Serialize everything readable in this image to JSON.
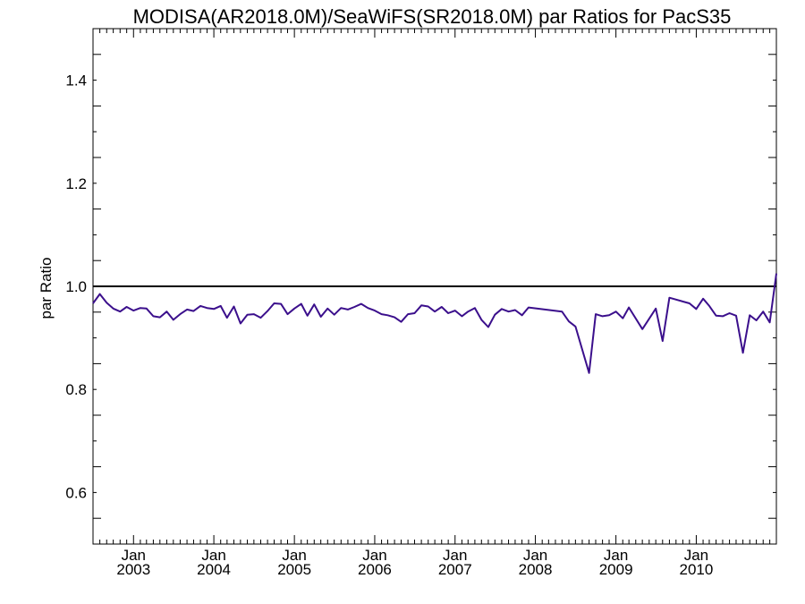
{
  "chart_data": {
    "type": "line",
    "title": "MODISA(AR2018.0M)/SeaWiFS(SR2018.0M)  par Ratios for PacS35",
    "xlabel": "",
    "ylabel": "par Ratio",
    "ylim": [
      0.5,
      1.5
    ],
    "xlim": [
      "2002-07-01",
      "2010-12-31"
    ],
    "grid": false,
    "legend": "none",
    "y_ticks": [
      {
        "value": 0.6,
        "label": "0.6"
      },
      {
        "value": 0.8,
        "label": "0.8"
      },
      {
        "value": 1.0,
        "label": "1.0"
      },
      {
        "value": 1.2,
        "label": "1.2"
      },
      {
        "value": 1.4,
        "label": "1.4"
      }
    ],
    "x_ticks": [
      {
        "date": "2003-01-01",
        "month": "Jan",
        "year": "2003"
      },
      {
        "date": "2004-01-01",
        "month": "Jan",
        "year": "2004"
      },
      {
        "date": "2005-01-01",
        "month": "Jan",
        "year": "2005"
      },
      {
        "date": "2006-01-01",
        "month": "Jan",
        "year": "2006"
      },
      {
        "date": "2007-01-01",
        "month": "Jan",
        "year": "2007"
      },
      {
        "date": "2008-01-01",
        "month": "Jan",
        "year": "2008"
      },
      {
        "date": "2009-01-01",
        "month": "Jan",
        "year": "2009"
      },
      {
        "date": "2010-01-01",
        "month": "Jan",
        "year": "2010"
      }
    ],
    "reference_line": {
      "y": 1.0,
      "color": "#000000"
    },
    "series": [
      {
        "color": "#3b0f8c",
        "points": [
          [
            "2002-07-01",
            0.967
          ],
          [
            "2002-08-01",
            0.985
          ],
          [
            "2002-09-01",
            0.968
          ],
          [
            "2002-10-01",
            0.957
          ],
          [
            "2002-11-01",
            0.951
          ],
          [
            "2002-12-01",
            0.96
          ],
          [
            "2003-01-01",
            0.953
          ],
          [
            "2003-02-01",
            0.958
          ],
          [
            "2003-03-01",
            0.957
          ],
          [
            "2003-04-01",
            0.942
          ],
          [
            "2003-05-01",
            0.94
          ],
          [
            "2003-06-01",
            0.951
          ],
          [
            "2003-07-01",
            0.935
          ],
          [
            "2003-08-01",
            0.946
          ],
          [
            "2003-09-01",
            0.955
          ],
          [
            "2003-10-01",
            0.952
          ],
          [
            "2003-11-01",
            0.962
          ],
          [
            "2003-12-01",
            0.958
          ],
          [
            "2004-01-01",
            0.956
          ],
          [
            "2004-02-01",
            0.962
          ],
          [
            "2004-03-01",
            0.939
          ],
          [
            "2004-04-01",
            0.961
          ],
          [
            "2004-05-01",
            0.928
          ],
          [
            "2004-06-01",
            0.945
          ],
          [
            "2004-07-01",
            0.946
          ],
          [
            "2004-08-01",
            0.939
          ],
          [
            "2004-09-01",
            0.952
          ],
          [
            "2004-10-01",
            0.967
          ],
          [
            "2004-11-01",
            0.966
          ],
          [
            "2004-12-01",
            0.946
          ],
          [
            "2005-01-01",
            0.957
          ],
          [
            "2005-02-01",
            0.966
          ],
          [
            "2005-03-01",
            0.943
          ],
          [
            "2005-04-01",
            0.965
          ],
          [
            "2005-05-01",
            0.941
          ],
          [
            "2005-06-01",
            0.957
          ],
          [
            "2005-07-01",
            0.945
          ],
          [
            "2005-08-01",
            0.958
          ],
          [
            "2005-09-01",
            0.955
          ],
          [
            "2005-10-01",
            0.96
          ],
          [
            "2005-11-01",
            0.966
          ],
          [
            "2005-12-01",
            0.958
          ],
          [
            "2006-01-01",
            0.953
          ],
          [
            "2006-02-01",
            0.946
          ],
          [
            "2006-03-01",
            0.944
          ],
          [
            "2006-04-01",
            0.94
          ],
          [
            "2006-05-01",
            0.931
          ],
          [
            "2006-06-01",
            0.946
          ],
          [
            "2006-07-01",
            0.948
          ],
          [
            "2006-08-01",
            0.963
          ],
          [
            "2006-09-01",
            0.961
          ],
          [
            "2006-10-01",
            0.951
          ],
          [
            "2006-11-01",
            0.96
          ],
          [
            "2006-12-01",
            0.948
          ],
          [
            "2007-01-01",
            0.953
          ],
          [
            "2007-02-01",
            0.942
          ],
          [
            "2007-03-01",
            0.951
          ],
          [
            "2007-04-01",
            0.958
          ],
          [
            "2007-05-01",
            0.935
          ],
          [
            "2007-06-01",
            0.921
          ],
          [
            "2007-07-01",
            0.945
          ],
          [
            "2007-08-01",
            0.956
          ],
          [
            "2007-09-01",
            0.951
          ],
          [
            "2007-10-01",
            0.954
          ],
          [
            "2007-11-01",
            0.944
          ],
          [
            "2007-12-01",
            0.959
          ],
          [
            "2008-05-01",
            0.951
          ],
          [
            "2008-06-01",
            0.932
          ],
          [
            "2008-07-01",
            0.922
          ],
          [
            "2008-09-01",
            0.832
          ],
          [
            "2008-10-01",
            0.946
          ],
          [
            "2008-11-01",
            0.942
          ],
          [
            "2008-12-01",
            0.944
          ],
          [
            "2009-01-01",
            0.951
          ],
          [
            "2009-02-01",
            0.938
          ],
          [
            "2009-03-01",
            0.959
          ],
          [
            "2009-05-01",
            0.917
          ],
          [
            "2009-07-01",
            0.957
          ],
          [
            "2009-08-01",
            0.894
          ],
          [
            "2009-09-01",
            0.978
          ],
          [
            "2009-12-01",
            0.967
          ],
          [
            "2010-01-01",
            0.956
          ],
          [
            "2010-02-01",
            0.976
          ],
          [
            "2010-03-01",
            0.962
          ],
          [
            "2010-04-01",
            0.943
          ],
          [
            "2010-05-01",
            0.942
          ],
          [
            "2010-06-01",
            0.948
          ],
          [
            "2010-07-01",
            0.943
          ],
          [
            "2010-08-01",
            0.871
          ],
          [
            "2010-09-01",
            0.944
          ],
          [
            "2010-10-01",
            0.934
          ],
          [
            "2010-11-01",
            0.951
          ],
          [
            "2010-12-01",
            0.93
          ],
          [
            "2010-12-31",
            1.025
          ]
        ]
      }
    ]
  }
}
